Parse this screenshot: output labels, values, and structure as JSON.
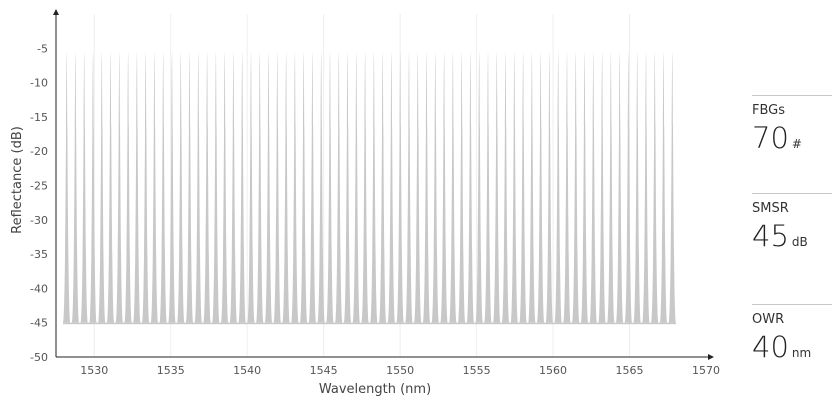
{
  "chart_data": {
    "type": "line",
    "title": "",
    "xlabel": "Wavelength (nm)",
    "ylabel": "Reflectance (dB)",
    "xlim": [
      1527.5,
      1570
    ],
    "ylim": [
      -50,
      0
    ],
    "xticks": [
      1530,
      1535,
      1540,
      1545,
      1550,
      1555,
      1560,
      1565,
      1570
    ],
    "yticks": [
      -5,
      -10,
      -15,
      -20,
      -25,
      -30,
      -35,
      -40,
      -45,
      -50
    ],
    "xtick_labels": [
      "1530",
      "1535",
      "1540",
      "1545",
      "1550",
      "1555",
      "1560",
      "1565",
      "1570"
    ],
    "ytick_labels": [
      "-5",
      "-10",
      "-15",
      "-20",
      "-25",
      "-30",
      "-35",
      "-40",
      "-45",
      "-50"
    ],
    "grid": "vertical",
    "series": [
      {
        "peak_count": 70,
        "first_peak_nm": 1528.2,
        "last_peak_nm": 1567.8,
        "peak_reflectance_db": -5.5,
        "floor_reflectance_db": -45,
        "color": "#c8c8c8"
      }
    ]
  },
  "stats": [
    {
      "label": "FBGs",
      "value": "70",
      "unit": "#"
    },
    {
      "label": "SMSR",
      "value": "45",
      "unit": "dB"
    },
    {
      "label": "OWR",
      "value": "40",
      "unit": "nm"
    }
  ]
}
